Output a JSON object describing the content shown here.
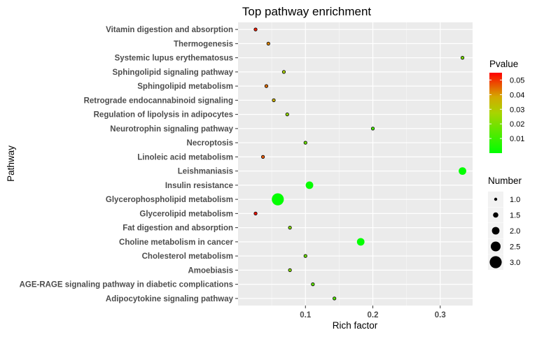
{
  "chart_data": {
    "type": "scatter",
    "title": "Top pathway enrichment",
    "xlabel": "Rich factor",
    "ylabel": "Pathway",
    "xlim": [
      0.0,
      0.348
    ],
    "x_ticks": [
      0.1,
      0.2,
      0.3
    ],
    "x_tick_labels": [
      "0.1",
      "0.2",
      "0.3"
    ],
    "grid": true,
    "legend_placement": "right",
    "categories": [
      "Vitamin digestion and absorption",
      "Thermogenesis",
      "Systemic lupus erythematosus",
      "Sphingolipid signaling pathway",
      "Sphingolipid metabolism",
      "Retrograde endocannabinoid signaling",
      "Regulation of lipolysis in adipocytes",
      "Neurotrophin signaling pathway",
      "Necroptosis",
      "Linoleic acid metabolism",
      "Leishmaniasis",
      "Insulin resistance",
      "Glycerophospholipid metabolism",
      "Glycerolipid metabolism",
      "Fat digestion and absorption",
      "Choline metabolism in cancer",
      "Cholesterol metabolism",
      "Amoebiasis",
      "AGE-RAGE signaling pathway in diabetic complications",
      "Adipocytokine signaling pathway"
    ],
    "points": [
      {
        "pathway": "Vitamin digestion and absorption",
        "rich_factor": 0.026,
        "number": 1,
        "pvalue": 0.052
      },
      {
        "pathway": "Thermogenesis",
        "rich_factor": 0.045,
        "number": 1,
        "pvalue": 0.042
      },
      {
        "pathway": "Systemic lupus erythematosus",
        "rich_factor": 0.333,
        "number": 1,
        "pvalue": 0.02
      },
      {
        "pathway": "Sphingolipid signaling pathway",
        "rich_factor": 0.068,
        "number": 1,
        "pvalue": 0.028
      },
      {
        "pathway": "Sphingolipid metabolism",
        "rich_factor": 0.042,
        "number": 1,
        "pvalue": 0.044
      },
      {
        "pathway": "Retrograde endocannabinoid signaling",
        "rich_factor": 0.053,
        "number": 1,
        "pvalue": 0.036
      },
      {
        "pathway": "Regulation of lipolysis in adipocytes",
        "rich_factor": 0.073,
        "number": 1,
        "pvalue": 0.024
      },
      {
        "pathway": "Neurotrophin signaling pathway",
        "rich_factor": 0.2,
        "number": 1,
        "pvalue": 0.012
      },
      {
        "pathway": "Necroptosis",
        "rich_factor": 0.1,
        "number": 1,
        "pvalue": 0.018
      },
      {
        "pathway": "Linoleic acid metabolism",
        "rich_factor": 0.037,
        "number": 1,
        "pvalue": 0.046
      },
      {
        "pathway": "Leishmaniasis",
        "rich_factor": 0.333,
        "number": 2,
        "pvalue": 0.0002
      },
      {
        "pathway": "Insulin resistance",
        "rich_factor": 0.106,
        "number": 2,
        "pvalue": 0.001
      },
      {
        "pathway": "Glycerophospholipid metabolism",
        "rich_factor": 0.059,
        "number": 3,
        "pvalue": 0.0005
      },
      {
        "pathway": "Glycerolipid metabolism",
        "rich_factor": 0.026,
        "number": 1,
        "pvalue": 0.053
      },
      {
        "pathway": "Fat digestion and absorption",
        "rich_factor": 0.077,
        "number": 1,
        "pvalue": 0.022
      },
      {
        "pathway": "Choline metabolism in cancer",
        "rich_factor": 0.182,
        "number": 2,
        "pvalue": 0.0003
      },
      {
        "pathway": "Cholesterol metabolism",
        "rich_factor": 0.1,
        "number": 1,
        "pvalue": 0.018
      },
      {
        "pathway": "Amoebiasis",
        "rich_factor": 0.077,
        "number": 1,
        "pvalue": 0.022
      },
      {
        "pathway": "AGE-RAGE signaling pathway in diabetic complications",
        "rich_factor": 0.111,
        "number": 1,
        "pvalue": 0.016
      },
      {
        "pathway": "Adipocytokine signaling pathway",
        "rich_factor": 0.143,
        "number": 1,
        "pvalue": 0.014
      }
    ],
    "color_legend": {
      "title": "Pvalue",
      "range": [
        0.0,
        0.055
      ],
      "ticks": [
        0.01,
        0.02,
        0.03,
        0.04,
        0.05
      ],
      "tick_labels": [
        "0.01",
        "0.02",
        "0.03",
        "0.04",
        "0.05"
      ],
      "low_color": "#00ff00",
      "high_color": "#ff0000"
    },
    "size_legend": {
      "title": "Number",
      "values": [
        1.0,
        1.5,
        2.0,
        2.5,
        3.0
      ],
      "labels": [
        "1.0",
        "1.5",
        "2.0",
        "2.5",
        "3.0"
      ]
    },
    "colors": {
      "panel_background": "#ebebeb",
      "grid_major": "#ffffff",
      "point_outline": "#000000"
    }
  }
}
